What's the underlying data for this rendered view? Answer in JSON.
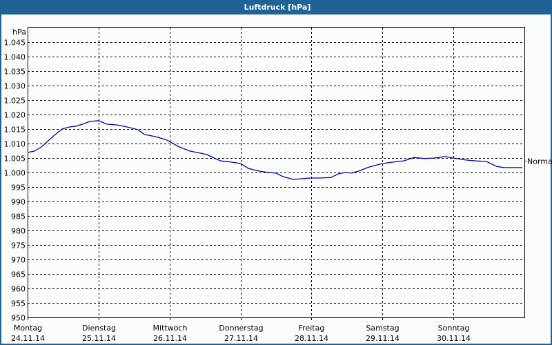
{
  "window": {
    "title": "Luftdruck [hPa]"
  },
  "colors": {
    "titlebar": "#1e6296",
    "line": "#0000b4",
    "grid": "#000000",
    "background": "#fbfdfb"
  },
  "chart_data": {
    "type": "line",
    "title": "Luftdruck [hPa]",
    "xlabel": "",
    "ylabel": "hPa",
    "ylim": [
      950,
      1048
    ],
    "xlim": [
      0,
      7
    ],
    "grid": true,
    "legend": null,
    "y_ticks": [
      "1.045",
      "1.040",
      "1.035",
      "1.030",
      "1.025",
      "1.020",
      "1.015",
      "1.010",
      "1.005",
      "1.000",
      "995",
      "990",
      "985",
      "980",
      "975",
      "970",
      "965",
      "960",
      "955",
      "950"
    ],
    "y_tick_values": [
      1045,
      1040,
      1035,
      1030,
      1025,
      1020,
      1015,
      1010,
      1005,
      1000,
      995,
      990,
      985,
      980,
      975,
      970,
      965,
      960,
      955,
      950
    ],
    "x_ticks": [
      {
        "day": "Montag",
        "date": "24.11.14"
      },
      {
        "day": "Dienstag",
        "date": "25.11.14"
      },
      {
        "day": "Mittwoch",
        "date": "26.11.14"
      },
      {
        "day": "Donnerstag",
        "date": "27.11.14"
      },
      {
        "day": "Freitag",
        "date": "28.11.14"
      },
      {
        "day": "Samstag",
        "date": "29.11.14"
      },
      {
        "day": "Sonntag",
        "date": "30.11.14"
      }
    ],
    "annotations": [
      {
        "label": "Normal",
        "value": 1004,
        "position": "right"
      }
    ],
    "series": [
      {
        "name": "Luftdruck",
        "x_days": [
          0.0,
          0.097,
          0.194,
          0.292,
          0.389,
          0.486,
          0.583,
          0.681,
          0.778,
          0.875,
          0.999,
          1.114,
          1.26,
          1.406,
          1.552,
          1.65,
          1.795,
          1.94,
          1.999,
          2.139,
          2.285,
          2.431,
          2.528,
          2.625,
          2.722,
          2.868,
          2.999,
          3.111,
          3.257,
          3.403,
          3.5,
          3.597,
          3.743,
          3.889,
          3.996,
          4.132,
          4.278,
          4.375,
          4.472,
          4.569,
          4.667,
          4.813,
          4.997,
          5.153,
          5.299,
          5.444,
          5.59,
          5.736,
          5.882,
          5.998,
          6.174,
          6.319,
          6.465,
          6.611,
          6.708,
          6.854,
          6.971
        ],
        "values": [
          1006.9,
          1007.4,
          1008.8,
          1011.0,
          1013.1,
          1015.0,
          1015.7,
          1016.0,
          1016.7,
          1017.6,
          1017.9,
          1016.7,
          1016.4,
          1015.7,
          1014.8,
          1013.1,
          1012.4,
          1011.4,
          1010.7,
          1008.8,
          1007.4,
          1006.7,
          1006.2,
          1005.0,
          1004.0,
          1003.6,
          1003.1,
          1001.4,
          1000.5,
          1000.0,
          999.8,
          998.6,
          997.6,
          997.9,
          998.1,
          998.1,
          998.3,
          999.5,
          1000.0,
          999.8,
          1000.5,
          1001.9,
          1003.1,
          1003.6,
          1004.0,
          1005.2,
          1004.8,
          1005.0,
          1005.5,
          1005.0,
          1004.3,
          1004.0,
          1003.8,
          1002.1,
          1001.7,
          1001.7,
          1001.7
        ]
      }
    ]
  }
}
